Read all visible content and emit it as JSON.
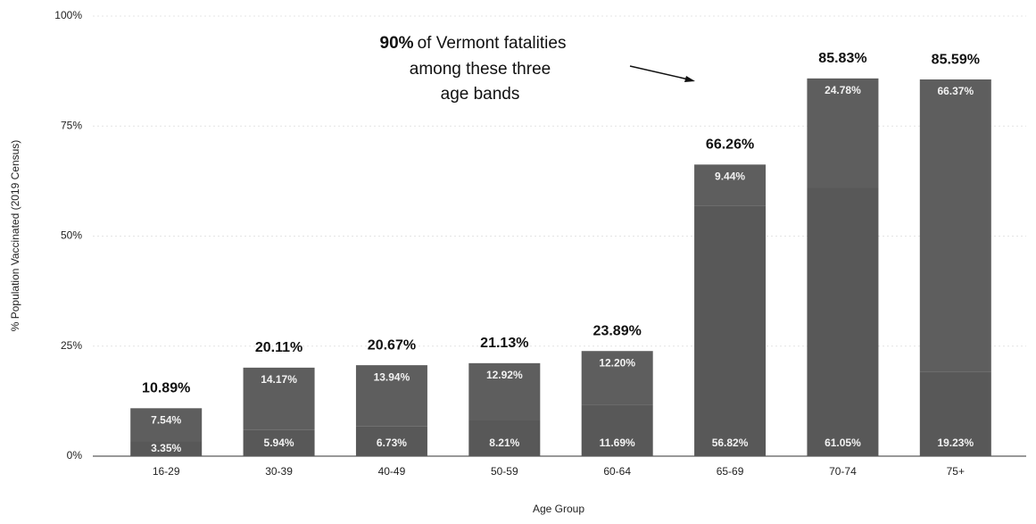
{
  "chart_data": {
    "type": "stacked_bar",
    "annotation_bold": "90%",
    "annotation_lines": [
      "of Vermont fatalities",
      "among these three",
      "age bands"
    ],
    "xlabel": "Age Group",
    "ylabel": "% Population Vaccinated (2019 Census)",
    "categories": [
      "16-29",
      "30-39",
      "40-49",
      "50-59",
      "60-64",
      "65-69",
      "70-74",
      "75+"
    ],
    "series": [
      {
        "color": "#585858",
        "values": [
          3.35,
          5.94,
          6.73,
          8.21,
          11.69,
          56.82,
          61.05,
          19.23
        ],
        "value_labels": [
          "3.35%",
          "5.94%",
          "6.73%",
          "8.21%",
          "11.69%",
          "56.82%",
          "61.05%",
          "19.23%"
        ]
      },
      {
        "color": "#5e5e5e",
        "values": [
          7.54,
          14.17,
          13.94,
          12.92,
          12.2,
          9.44,
          24.78,
          66.37
        ],
        "value_labels": [
          "7.54%",
          "14.17%",
          "13.94%",
          "12.92%",
          "12.20%",
          "9.44%",
          "24.78%",
          "66.37%"
        ]
      }
    ],
    "totals": [
      10.89,
      20.11,
      20.67,
      21.13,
      23.89,
      66.26,
      85.83,
      85.59
    ],
    "total_labels": [
      "10.89%",
      "20.11%",
      "20.67%",
      "21.13%",
      "23.89%",
      "66.26%",
      "85.83%",
      "85.59%"
    ],
    "ylim": [
      0,
      100
    ],
    "yticks": [
      {
        "value": 0,
        "label": "0%"
      },
      {
        "value": 25,
        "label": "25%"
      },
      {
        "value": 50,
        "label": "50%"
      },
      {
        "value": 75,
        "label": "75%"
      },
      {
        "value": 100,
        "label": "100%"
      }
    ],
    "grid": true
  }
}
